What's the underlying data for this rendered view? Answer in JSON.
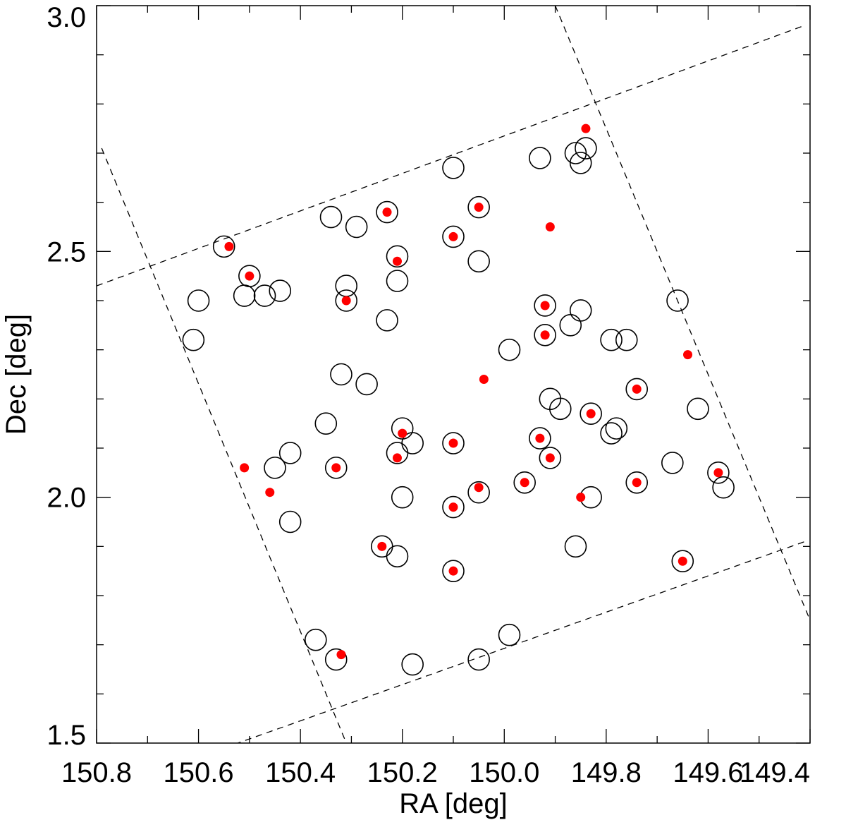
{
  "chart_data": {
    "type": "scatter",
    "xlabel": "RA [deg]",
    "ylabel": "Dec [deg]",
    "xlim": [
      150.8,
      149.4
    ],
    "ylim": [
      1.5,
      3.0
    ],
    "x_reversed": true,
    "x_ticks": [
      150.8,
      150.6,
      150.4,
      150.2,
      150.0,
      149.8,
      149.6,
      149.4
    ],
    "x_tick_labels": [
      "150.8",
      "150.6",
      "150.4",
      "150.2",
      "150.0",
      "149.8",
      "149.6",
      "149.4"
    ],
    "y_ticks": [
      1.5,
      2.0,
      2.5,
      3.0
    ],
    "y_tick_labels": [
      "1.5",
      "2.0",
      "2.5",
      "3.0"
    ],
    "grid": false,
    "colors": {
      "filled": "#ff0000",
      "open": "#000000",
      "boundary": "#000000"
    },
    "series": [
      {
        "marker": "open-circle",
        "x": [
          150.55,
          150.5,
          150.61,
          150.6,
          150.51,
          150.47,
          150.44,
          150.45,
          150.42,
          150.42,
          150.34,
          150.35,
          150.33,
          150.31,
          150.31,
          150.29,
          150.32,
          150.27,
          150.23,
          150.21,
          150.21,
          150.23,
          150.2,
          150.18,
          150.21,
          150.2,
          150.21,
          150.24,
          150.1,
          150.1,
          150.05,
          150.05,
          150.1,
          150.05,
          150.1,
          150.1,
          149.99,
          149.96,
          149.93,
          149.92,
          149.92,
          149.87,
          149.85,
          149.89,
          149.91,
          149.91,
          149.93,
          149.86,
          149.85,
          149.84,
          149.83,
          149.86,
          149.79,
          149.76,
          149.83,
          149.78,
          149.79,
          149.74,
          149.74,
          149.66,
          149.67,
          149.62,
          149.58,
          149.57,
          149.65,
          150.37,
          150.33,
          150.18,
          150.05,
          149.99
        ],
        "y": [
          2.51,
          2.45,
          2.32,
          2.4,
          2.41,
          2.41,
          2.42,
          2.06,
          2.09,
          1.95,
          2.57,
          2.15,
          2.06,
          2.43,
          2.4,
          2.55,
          2.25,
          2.23,
          2.58,
          2.49,
          2.44,
          2.36,
          2.14,
          2.11,
          2.09,
          2.0,
          1.88,
          1.9,
          2.67,
          2.53,
          2.59,
          2.48,
          2.11,
          2.01,
          1.98,
          1.85,
          2.3,
          2.03,
          2.12,
          2.39,
          2.33,
          2.35,
          2.38,
          2.18,
          2.2,
          2.08,
          2.69,
          2.7,
          2.68,
          2.71,
          2.17,
          1.9,
          2.32,
          2.32,
          2.0,
          2.14,
          2.13,
          2.22,
          2.03,
          2.4,
          2.07,
          2.18,
          2.05,
          2.02,
          1.87,
          1.71,
          1.67,
          1.66,
          1.67,
          1.72
        ]
      },
      {
        "marker": "filled-dot",
        "x": [
          150.54,
          150.5,
          150.51,
          150.46,
          150.33,
          150.31,
          150.23,
          150.21,
          150.2,
          150.21,
          150.24,
          150.1,
          150.05,
          150.1,
          150.05,
          150.1,
          150.1,
          150.04,
          149.96,
          149.93,
          149.92,
          149.92,
          149.91,
          149.91,
          149.85,
          149.84,
          149.83,
          149.74,
          149.74,
          149.64,
          149.58,
          149.65,
          150.32
        ],
        "y": [
          2.51,
          2.45,
          2.06,
          2.01,
          2.06,
          2.4,
          2.58,
          2.48,
          2.13,
          2.08,
          1.9,
          2.53,
          2.59,
          2.11,
          2.02,
          1.98,
          1.85,
          2.24,
          2.03,
          2.12,
          2.39,
          2.33,
          2.55,
          2.08,
          2.0,
          2.75,
          2.17,
          2.22,
          2.03,
          2.29,
          2.05,
          1.87,
          1.68
        ]
      }
    ],
    "boundary_lines": [
      {
        "style": "dashed",
        "x": [
          150.8,
          149.41
        ],
        "y": [
          2.43,
          2.96
        ]
      },
      {
        "style": "dashed",
        "x": [
          150.55,
          149.41
        ],
        "y": [
          1.49,
          1.91
        ]
      },
      {
        "style": "dashed",
        "x": [
          150.79,
          150.31
        ],
        "y": [
          2.71,
          1.5
        ]
      },
      {
        "style": "dashed",
        "x": [
          149.9,
          149.4
        ],
        "y": [
          3.0,
          1.75
        ]
      }
    ]
  }
}
